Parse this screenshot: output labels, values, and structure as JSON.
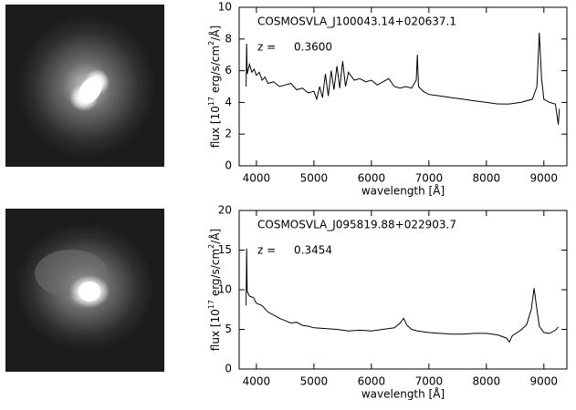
{
  "chart_data": [
    {
      "type": "line",
      "object": "COSMOSVLA_J100043.14+020637.1",
      "z_label": "z =",
      "z": "0.3600",
      "xlabel": "wavelength [Å]",
      "ylabel_parts": [
        "flux [10",
        "17",
        " erg/s/cm",
        "2",
        "/Å]"
      ],
      "color": "#000000",
      "xlim": [
        3700,
        9400
      ],
      "xticks": [
        4000,
        5000,
        6000,
        7000,
        8000,
        9000
      ],
      "ylim": [
        0,
        10
      ],
      "yticks": [
        0,
        2,
        4,
        6,
        8,
        10
      ],
      "x": [
        3820,
        3830,
        3840,
        3880,
        3920,
        3960,
        4000,
        4050,
        4100,
        4150,
        4200,
        4300,
        4400,
        4500,
        4600,
        4700,
        4800,
        4900,
        5000,
        5050,
        5100,
        5150,
        5200,
        5250,
        5300,
        5350,
        5400,
        5450,
        5500,
        5550,
        5600,
        5700,
        5800,
        5900,
        6000,
        6100,
        6200,
        6300,
        6400,
        6500,
        6600,
        6700,
        6780,
        6800,
        6820,
        6900,
        7000,
        7200,
        7400,
        7600,
        7800,
        8000,
        8200,
        8400,
        8600,
        8800,
        8880,
        8920,
        8960,
        9000,
        9100,
        9200,
        9250,
        9270
      ],
      "values": [
        5.0,
        7.7,
        5.8,
        6.4,
        5.9,
        6.1,
        5.7,
        5.9,
        5.4,
        5.6,
        5.2,
        5.3,
        5.0,
        5.1,
        5.2,
        4.8,
        4.9,
        4.6,
        4.7,
        4.2,
        5.0,
        4.3,
        5.8,
        4.4,
        6.0,
        4.8,
        6.3,
        4.9,
        6.6,
        5.0,
        5.9,
        5.4,
        5.5,
        5.3,
        5.4,
        5.1,
        5.3,
        5.5,
        5.0,
        4.9,
        5.0,
        4.9,
        5.4,
        7.0,
        5.0,
        4.7,
        4.5,
        4.4,
        4.3,
        4.2,
        4.1,
        4.0,
        3.9,
        3.9,
        4.0,
        4.2,
        5.0,
        8.4,
        5.5,
        4.2,
        4.0,
        3.9,
        2.6,
        3.6
      ]
    },
    {
      "type": "line",
      "object": "COSMOSVLA_J095819.88+022903.7",
      "z_label": "z =",
      "z": "0.3454",
      "xlabel": "wavelength [Å]",
      "ylabel_parts": [
        "flux [10",
        "17",
        " erg/s/cm",
        "2",
        "/Å]"
      ],
      "color": "#000000",
      "xlim": [
        3700,
        9400
      ],
      "xticks": [
        4000,
        5000,
        6000,
        7000,
        8000,
        9000
      ],
      "ylim": [
        0,
        20
      ],
      "yticks": [
        0,
        5,
        10,
        15,
        20
      ],
      "x": [
        3820,
        3830,
        3840,
        3880,
        3950,
        4000,
        4100,
        4200,
        4300,
        4400,
        4500,
        4600,
        4700,
        4800,
        4900,
        5000,
        5200,
        5400,
        5600,
        5800,
        6000,
        6200,
        6400,
        6500,
        6560,
        6620,
        6700,
        6800,
        7000,
        7200,
        7400,
        7600,
        7800,
        8000,
        8200,
        8350,
        8400,
        8450,
        8600,
        8700,
        8780,
        8830,
        8870,
        8920,
        9000,
        9100,
        9200,
        9250
      ],
      "values": [
        8,
        15.2,
        9.8,
        9.2,
        9.0,
        8.3,
        8.0,
        7.2,
        6.8,
        6.4,
        6.1,
        5.8,
        5.9,
        5.5,
        5.4,
        5.2,
        5.1,
        5.0,
        4.8,
        4.9,
        4.8,
        5.0,
        5.2,
        5.8,
        6.4,
        5.5,
        5.0,
        4.8,
        4.6,
        4.5,
        4.4,
        4.4,
        4.5,
        4.5,
        4.3,
        3.9,
        3.4,
        4.2,
        4.9,
        5.6,
        7.5,
        10.2,
        8.0,
        5.4,
        4.6,
        4.5,
        4.9,
        5.3
      ]
    }
  ]
}
